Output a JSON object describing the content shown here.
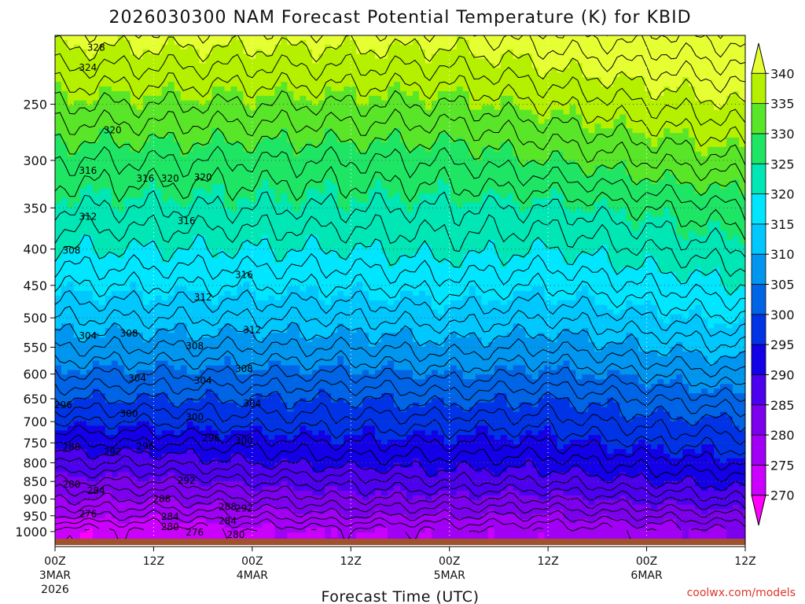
{
  "chart_data": {
    "type": "heatmap",
    "title": "2026030300 NAM Forecast Potential Temperature (K) for KBID",
    "xlabel": "Forecast Time (UTC)",
    "ylabel": "",
    "x_ticks": [
      {
        "hour": 0,
        "label": "00Z",
        "sub1": "3MAR",
        "sub2": "2026"
      },
      {
        "hour": 12,
        "label": "12Z",
        "sub1": "",
        "sub2": ""
      },
      {
        "hour": 24,
        "label": "00Z",
        "sub1": "4MAR",
        "sub2": ""
      },
      {
        "hour": 36,
        "label": "12Z",
        "sub1": "",
        "sub2": ""
      },
      {
        "hour": 48,
        "label": "00Z",
        "sub1": "5MAR",
        "sub2": ""
      },
      {
        "hour": 60,
        "label": "12Z",
        "sub1": "",
        "sub2": ""
      },
      {
        "hour": 72,
        "label": "00Z",
        "sub1": "6MAR",
        "sub2": ""
      },
      {
        "hour": 84,
        "label": "12Z",
        "sub1": "",
        "sub2": ""
      }
    ],
    "xlim": [
      0,
      84
    ],
    "y_ticks": [
      250,
      300,
      350,
      400,
      450,
      500,
      550,
      600,
      650,
      700,
      750,
      800,
      850,
      900,
      950,
      1000
    ],
    "ylim_hpa": [
      1050,
      200
    ],
    "colorbar": {
      "levels": [
        270,
        275,
        280,
        285,
        290,
        295,
        300,
        305,
        310,
        315,
        320,
        325,
        330,
        335,
        340
      ],
      "colors": [
        "#ff00ff",
        "#cc00ff",
        "#a200f6",
        "#7c00ee",
        "#4d00ee",
        "#1400e6",
        "#0033e6",
        "#0064e6",
        "#0096f0",
        "#00c8ff",
        "#00e6ff",
        "#00e6b4",
        "#1ee664",
        "#5ae628",
        "#b4f000",
        "#e6ff33"
      ]
    },
    "sections": [
      {
        "hour": 0,
        "temps": [
          270,
          276,
          280,
          284,
          288,
          292,
          296,
          300,
          304,
          308,
          312,
          316,
          320,
          324,
          328,
          334
        ]
      },
      {
        "hour": 12,
        "temps": [
          272,
          276,
          280,
          284,
          288,
          292,
          296,
          300,
          304,
          308,
          312,
          316,
          320,
          324,
          328,
          334
        ]
      },
      {
        "hour": 24,
        "temps": [
          274,
          278,
          282,
          286,
          290,
          293,
          297,
          300,
          304,
          308,
          312,
          316,
          320,
          324,
          328,
          334
        ]
      },
      {
        "hour": 36,
        "temps": [
          275,
          280,
          284,
          287,
          291,
          294,
          297,
          300,
          304,
          308,
          312,
          316,
          320,
          324,
          328,
          334
        ]
      },
      {
        "hour": 48,
        "temps": [
          276,
          280,
          284,
          288,
          291,
          294,
          297,
          301,
          305,
          309,
          313,
          317,
          321,
          324,
          328,
          334
        ]
      },
      {
        "hour": 60,
        "temps": [
          276,
          280,
          284,
          288,
          291,
          294,
          297,
          300,
          304,
          308,
          312,
          316,
          320,
          324,
          330,
          336
        ]
      },
      {
        "hour": 72,
        "temps": [
          278,
          282,
          286,
          290,
          293,
          296,
          299,
          302,
          306,
          310,
          314,
          318,
          322,
          326,
          332,
          338
        ]
      },
      {
        "hour": 84,
        "temps": [
          280,
          284,
          288,
          291,
          294,
          297,
          300,
          304,
          308,
          312,
          316,
          320,
          324,
          328,
          334,
          340
        ]
      }
    ],
    "section_pressures": [
      1000,
      950,
      900,
      850,
      800,
      750,
      700,
      650,
      600,
      550,
      500,
      450,
      400,
      350,
      300,
      250
    ],
    "contour_labels": [
      {
        "value": "328",
        "hour": 5,
        "hpa": 208
      },
      {
        "value": "324",
        "hour": 4,
        "hpa": 222
      },
      {
        "value": "320",
        "hour": 7,
        "hpa": 272
      },
      {
        "value": "316",
        "hour": 4,
        "hpa": 310
      },
      {
        "value": "316",
        "hour": 11,
        "hpa": 318
      },
      {
        "value": "320",
        "hour": 14,
        "hpa": 318
      },
      {
        "value": "312",
        "hour": 4,
        "hpa": 360
      },
      {
        "value": "308",
        "hour": 2,
        "hpa": 402
      },
      {
        "value": "304",
        "hour": 4,
        "hpa": 530
      },
      {
        "value": "308",
        "hour": 9,
        "hpa": 526
      },
      {
        "value": "304",
        "hour": 10,
        "hpa": 608
      },
      {
        "value": "296",
        "hour": 1,
        "hpa": 663
      },
      {
        "value": "300",
        "hour": 9,
        "hpa": 682
      },
      {
        "value": "288",
        "hour": 2,
        "hpa": 760
      },
      {
        "value": "292",
        "hour": 7,
        "hpa": 772
      },
      {
        "value": "296",
        "hour": 11,
        "hpa": 758
      },
      {
        "value": "280",
        "hour": 2,
        "hpa": 858
      },
      {
        "value": "284",
        "hour": 5,
        "hpa": 876
      },
      {
        "value": "276",
        "hour": 4,
        "hpa": 945
      },
      {
        "value": "288",
        "hour": 13,
        "hpa": 900
      },
      {
        "value": "292",
        "hour": 16,
        "hpa": 848
      },
      {
        "value": "300",
        "hour": 17,
        "hpa": 690
      },
      {
        "value": "308",
        "hour": 17,
        "hpa": 548
      },
      {
        "value": "312",
        "hour": 18,
        "hpa": 468
      },
      {
        "value": "316",
        "hour": 16,
        "hpa": 365
      },
      {
        "value": "320",
        "hour": 18,
        "hpa": 317
      },
      {
        "value": "304",
        "hour": 18,
        "hpa": 613
      },
      {
        "value": "296",
        "hour": 19,
        "hpa": 738
      },
      {
        "value": "284",
        "hour": 14,
        "hpa": 953
      },
      {
        "value": "280",
        "hour": 14,
        "hpa": 985
      },
      {
        "value": "276",
        "hour": 17,
        "hpa": 1003
      },
      {
        "value": "288",
        "hour": 21,
        "hpa": 923
      },
      {
        "value": "284",
        "hour": 21,
        "hpa": 966
      },
      {
        "value": "280",
        "hour": 22,
        "hpa": 1010
      },
      {
        "value": "292",
        "hour": 23,
        "hpa": 928
      },
      {
        "value": "300",
        "hour": 23,
        "hpa": 745
      },
      {
        "value": "304",
        "hour": 24,
        "hpa": 660
      },
      {
        "value": "308",
        "hour": 23,
        "hpa": 590
      },
      {
        "value": "312",
        "hour": 24,
        "hpa": 520
      },
      {
        "value": "316",
        "hour": 23,
        "hpa": 435
      }
    ],
    "footer": "coolwx.com/models"
  }
}
